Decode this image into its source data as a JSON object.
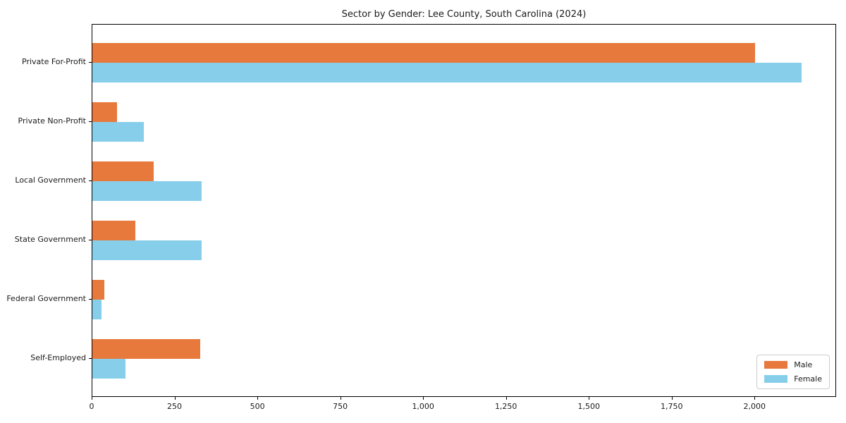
{
  "chart_data": {
    "type": "bar",
    "orientation": "horizontal",
    "title": "Sector by Gender: Lee County, South Carolina (2024)",
    "categories": [
      "Private For-Profit",
      "Private Non-Profit",
      "Local Government",
      "State Government",
      "Federal Government",
      "Self-Employed"
    ],
    "series": [
      {
        "name": "Male",
        "color": "#e8793d",
        "values": [
          2000,
          75,
          185,
          130,
          35,
          325
        ]
      },
      {
        "name": "Female",
        "color": "#87ceeb",
        "values": [
          2140,
          155,
          330,
          330,
          27,
          100
        ]
      }
    ],
    "xlabel": "",
    "ylabel": "",
    "xlim": [
      0,
      2246
    ],
    "xticks": [
      0,
      250,
      500,
      750,
      1000,
      1250,
      1500,
      1750,
      2000
    ],
    "xtick_labels": [
      "0",
      "250",
      "500",
      "750",
      "1,000",
      "1,250",
      "1,500",
      "1,750",
      "2,000"
    ],
    "grid": false,
    "legend_position": "lower right",
    "axis_color": "#000000",
    "background_color": "#ffffff"
  }
}
